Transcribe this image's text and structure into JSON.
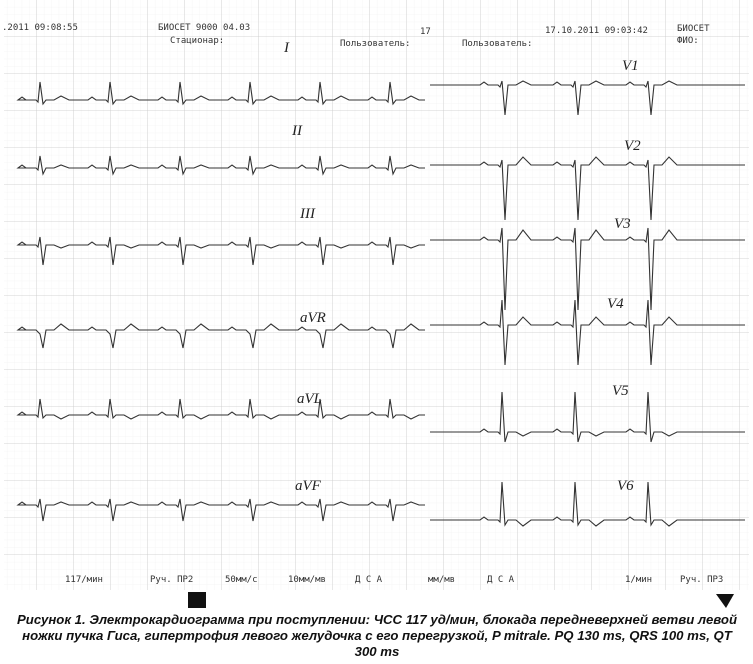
{
  "header": {
    "texts": [
      ".2011 09:08:55",
      "БИОСЕТ 9000 04.03",
      "Стационар:",
      "Пользователь:",
      "17",
      "Пользователь:",
      "17.10.2011 09:03:42",
      "БИОСЕТ",
      "ФИО:"
    ]
  },
  "leads": [
    "I",
    "II",
    "III",
    "aVR",
    "aVL",
    "aVF",
    "V1",
    "V2",
    "V3",
    "V4",
    "V5",
    "V6"
  ],
  "footer": [
    "117/мин",
    "Руч. ПР2",
    "50мм/с",
    "10мм/мв",
    "Д С А",
    "мм/мв",
    "Д С А",
    "1/мин",
    "Руч. ПР3"
  ],
  "caption": "Рисунок 1. Электрокардиограмма при поступлении: ЧСС 117 уд/мин, блокада передневерхней ветви левой ножки пучка Гиса, гипертрофия левого желудочка с его перегрузкой, P mitrale. PQ 130 ms, QRS 100 ms, QT 300 ms"
}
